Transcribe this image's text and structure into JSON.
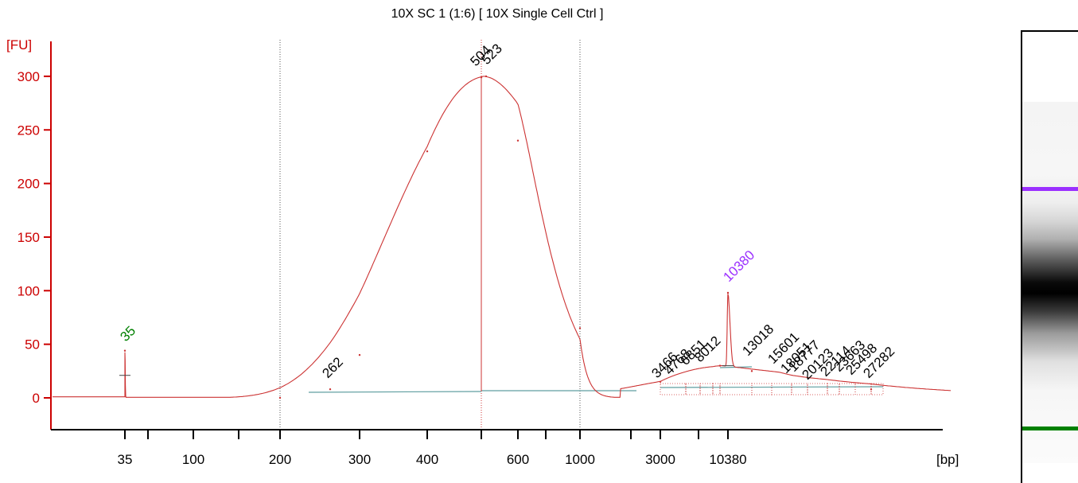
{
  "chart_data": {
    "type": "line",
    "title": "10X SC 1 (1:6)  [ 10X Single Cell Ctrl ]",
    "ylabel": "[FU]",
    "xlabel": "[bp]",
    "ylim": [
      -30,
      320
    ],
    "y_ticks": [
      0,
      50,
      100,
      150,
      200,
      250,
      300
    ],
    "x_tick_labels": [
      "35",
      "100",
      "200",
      "300",
      "400",
      "600",
      "1000",
      "3000",
      "10380"
    ],
    "grid": "dotted vertical lines at 200, ~500 and 1000 bp",
    "series": [
      {
        "name": "electropherogram",
        "color": "#cc3333",
        "points": [
          {
            "bp": 35,
            "fu": 44
          },
          {
            "bp": 200,
            "fu": 0
          },
          {
            "bp": 262,
            "fu": 8
          },
          {
            "bp": 300,
            "fu": 40
          },
          {
            "bp": 400,
            "fu": 230
          },
          {
            "bp": 504,
            "fu": 299
          },
          {
            "bp": 523,
            "fu": 300
          },
          {
            "bp": 600,
            "fu": 240
          },
          {
            "bp": 1000,
            "fu": 65
          },
          {
            "bp": 3000,
            "fu": 15
          },
          {
            "bp": 8012,
            "fu": 30
          },
          {
            "bp": 10380,
            "fu": 98
          },
          {
            "bp": 13018,
            "fu": 25
          },
          {
            "bp": 27282,
            "fu": 8
          }
        ]
      }
    ],
    "peak_labels": [
      {
        "label": "35",
        "color": "#008000"
      },
      {
        "label": "262",
        "color": "#000000"
      },
      {
        "label": "504",
        "color": "#000000"
      },
      {
        "label": "523",
        "color": "#000000"
      },
      {
        "label": "10380",
        "color": "#9b30ff"
      },
      {
        "label": "3466",
        "color": "#000000"
      },
      {
        "label": "4768",
        "color": "#000000"
      },
      {
        "label": "6851",
        "color": "#000000"
      },
      {
        "label": "8012",
        "color": "#000000"
      },
      {
        "label": "13018",
        "color": "#000000"
      },
      {
        "label": "15601",
        "color": "#000000"
      },
      {
        "label": "18051",
        "color": "#000000"
      },
      {
        "label": "18777",
        "color": "#000000"
      },
      {
        "label": "20123",
        "color": "#000000"
      },
      {
        "label": "22114",
        "color": "#000000"
      },
      {
        "label": "23663",
        "color": "#000000"
      },
      {
        "label": "25498",
        "color": "#000000"
      },
      {
        "label": "27282",
        "color": "#000000"
      }
    ]
  },
  "gel": {
    "upper_marker_color": "#9b30ff",
    "lower_marker_color": "#008000"
  },
  "colors": {
    "axis": "#cc0000",
    "trace": "#cc3333",
    "baseline": "#5f9ea0"
  }
}
